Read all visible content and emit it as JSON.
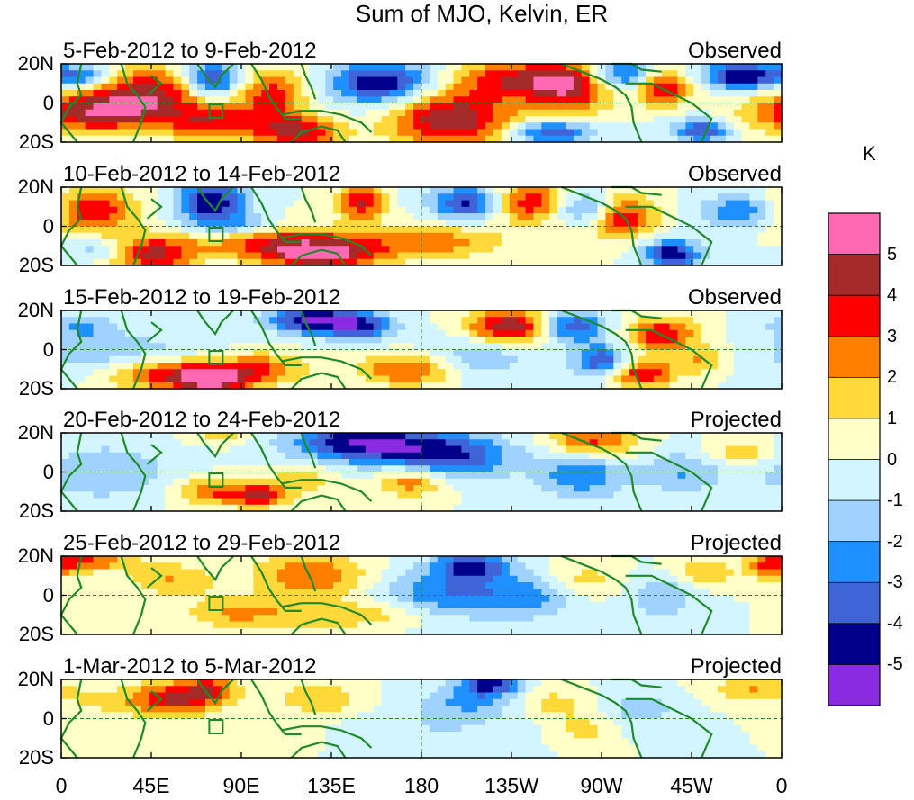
{
  "chart_data": {
    "type": "heatmap",
    "title": "Sum of MJO, Kelvin, ER",
    "units": "K",
    "x_ticks": [
      "0",
      "45E",
      "90E",
      "135E",
      "180",
      "135W",
      "90W",
      "45W",
      "0"
    ],
    "x_tick_values_deg": [
      0,
      45,
      90,
      135,
      180,
      225,
      270,
      315,
      360
    ],
    "y_ticks": [
      "20N",
      "0",
      "20S"
    ],
    "y_tick_values_deg": [
      20,
      0,
      -20
    ],
    "colorbar_labels": [
      "5",
      "4",
      "3",
      "2",
      "1",
      "0",
      "-1",
      "-2",
      "-3",
      "-4",
      "-5"
    ],
    "colorbar_colors": [
      "#FF69B4",
      "#A52A2A",
      "#FF0000",
      "#FF7F00",
      "#FFD83A",
      "#FFFFC8",
      "#D2F5FF",
      "#A0D2FF",
      "#1E90FF",
      "#3E64D8",
      "#00008B",
      "#8A2BE2"
    ],
    "colorbar_bounds": [
      5,
      4,
      3,
      2,
      1,
      0,
      -1,
      -2,
      -3,
      -4,
      -5
    ],
    "panels": [
      {
        "date_range": "5-Feb-2012 to 9-Feb-2012",
        "status": "Observed",
        "blobs": [
          [
            15,
            -5,
            22,
            7,
            4.5
          ],
          [
            45,
            5,
            20,
            9,
            4.2
          ],
          [
            75,
            -10,
            18,
            6,
            3.5
          ],
          [
            75,
            12,
            10,
            6,
            -5
          ],
          [
            105,
            4,
            12,
            9,
            3.5
          ],
          [
            118,
            -15,
            15,
            6,
            4
          ],
          [
            160,
            10,
            18,
            8,
            -5
          ],
          [
            195,
            -8,
            22,
            10,
            5
          ],
          [
            225,
            12,
            20,
            7,
            3.5
          ],
          [
            255,
            8,
            15,
            9,
            4.5
          ],
          [
            280,
            14,
            12,
            6,
            -4
          ],
          [
            300,
            8,
            10,
            6,
            4.5
          ],
          [
            340,
            14,
            14,
            5,
            -5
          ],
          [
            10,
            14,
            10,
            4,
            -3
          ],
          [
            245,
            -15,
            15,
            4,
            -4
          ],
          [
            320,
            -14,
            10,
            4,
            -4
          ]
        ]
      },
      {
        "date_range": "10-Feb-2012 to 14-Feb-2012",
        "status": "Observed",
        "blobs": [
          [
            15,
            8,
            15,
            8,
            4
          ],
          [
            45,
            -14,
            15,
            6,
            4.5
          ],
          [
            75,
            12,
            12,
            8,
            -5
          ],
          [
            110,
            -8,
            30,
            6,
            3.5
          ],
          [
            130,
            -15,
            20,
            5,
            4.5
          ],
          [
            150,
            12,
            8,
            6,
            4
          ],
          [
            185,
            -8,
            25,
            6,
            2.5
          ],
          [
            205,
            12,
            14,
            6,
            -5
          ],
          [
            235,
            12,
            18,
            7,
            4.5
          ],
          [
            260,
            10,
            12,
            6,
            -4.5
          ],
          [
            280,
            5,
            12,
            8,
            4
          ],
          [
            305,
            -14,
            10,
            5,
            -5
          ],
          [
            340,
            8,
            15,
            6,
            -3
          ],
          [
            90,
            0,
            15,
            4,
            -2
          ],
          [
            20,
            -12,
            12,
            4,
            -2
          ]
        ]
      },
      {
        "date_range": "15-Feb-2012 to 19-Feb-2012",
        "status": "Observed",
        "blobs": [
          [
            30,
            -3,
            30,
            8,
            -2
          ],
          [
            50,
            -12,
            20,
            6,
            4
          ],
          [
            75,
            -15,
            12,
            5,
            5
          ],
          [
            100,
            -10,
            15,
            6,
            3
          ],
          [
            125,
            15,
            15,
            5,
            -5
          ],
          [
            150,
            12,
            12,
            5,
            -4
          ],
          [
            175,
            -10,
            18,
            6,
            3.5
          ],
          [
            225,
            12,
            15,
            6,
            5
          ],
          [
            255,
            12,
            12,
            6,
            -4
          ],
          [
            270,
            -6,
            10,
            6,
            -4
          ],
          [
            290,
            -12,
            12,
            5,
            4
          ],
          [
            300,
            8,
            12,
            6,
            4
          ],
          [
            320,
            -5,
            10,
            5,
            2
          ],
          [
            10,
            12,
            12,
            5,
            -2
          ],
          [
            205,
            -5,
            20,
            8,
            -2
          ]
        ]
      },
      {
        "date_range": "20-Feb-2012 to 24-Feb-2012",
        "status": "Projected",
        "blobs": [
          [
            20,
            0,
            25,
            10,
            -2
          ],
          [
            75,
            -10,
            12,
            5,
            3
          ],
          [
            100,
            -12,
            10,
            4,
            4
          ],
          [
            150,
            15,
            25,
            7,
            -5
          ],
          [
            175,
            -5,
            12,
            5,
            3
          ],
          [
            195,
            8,
            22,
            8,
            -4
          ],
          [
            260,
            0,
            15,
            10,
            -3
          ],
          [
            265,
            15,
            15,
            6,
            4
          ],
          [
            310,
            0,
            15,
            8,
            -2
          ],
          [
            340,
            10,
            12,
            5,
            2
          ],
          [
            120,
            -3,
            10,
            5,
            2
          ],
          [
            80,
            18,
            10,
            3,
            1.5
          ]
        ]
      },
      {
        "date_range": "25-Feb-2012 to 29-Feb-2012",
        "status": "Projected",
        "blobs": [
          [
            15,
            18,
            15,
            4,
            3
          ],
          [
            55,
            8,
            15,
            6,
            2
          ],
          [
            85,
            -8,
            15,
            6,
            1.5
          ],
          [
            125,
            10,
            20,
            8,
            3
          ],
          [
            140,
            -10,
            40,
            5,
            2
          ],
          [
            195,
            0,
            25,
            10,
            -3
          ],
          [
            205,
            15,
            12,
            5,
            -4
          ],
          [
            235,
            0,
            15,
            8,
            -2
          ],
          [
            260,
            8,
            15,
            6,
            1.5
          ],
          [
            300,
            0,
            12,
            8,
            -2
          ],
          [
            320,
            12,
            12,
            5,
            2
          ],
          [
            355,
            15,
            8,
            5,
            3
          ]
        ]
      },
      {
        "date_range": "1-Mar-2012 to 5-Mar-2012",
        "status": "Projected",
        "blobs": [
          [
            55,
            10,
            15,
            6,
            4
          ],
          [
            75,
            15,
            10,
            5,
            3
          ],
          [
            130,
            10,
            15,
            6,
            2
          ],
          [
            190,
            -3,
            30,
            10,
            -1
          ],
          [
            205,
            10,
            15,
            6,
            -2
          ],
          [
            215,
            18,
            10,
            4,
            -4
          ],
          [
            245,
            8,
            12,
            5,
            1.5
          ],
          [
            260,
            -5,
            10,
            6,
            1.5
          ],
          [
            290,
            5,
            15,
            6,
            -1.5
          ],
          [
            345,
            15,
            15,
            5,
            2
          ],
          [
            100,
            -10,
            15,
            5,
            1
          ],
          [
            20,
            8,
            15,
            5,
            1
          ]
        ]
      }
    ]
  }
}
